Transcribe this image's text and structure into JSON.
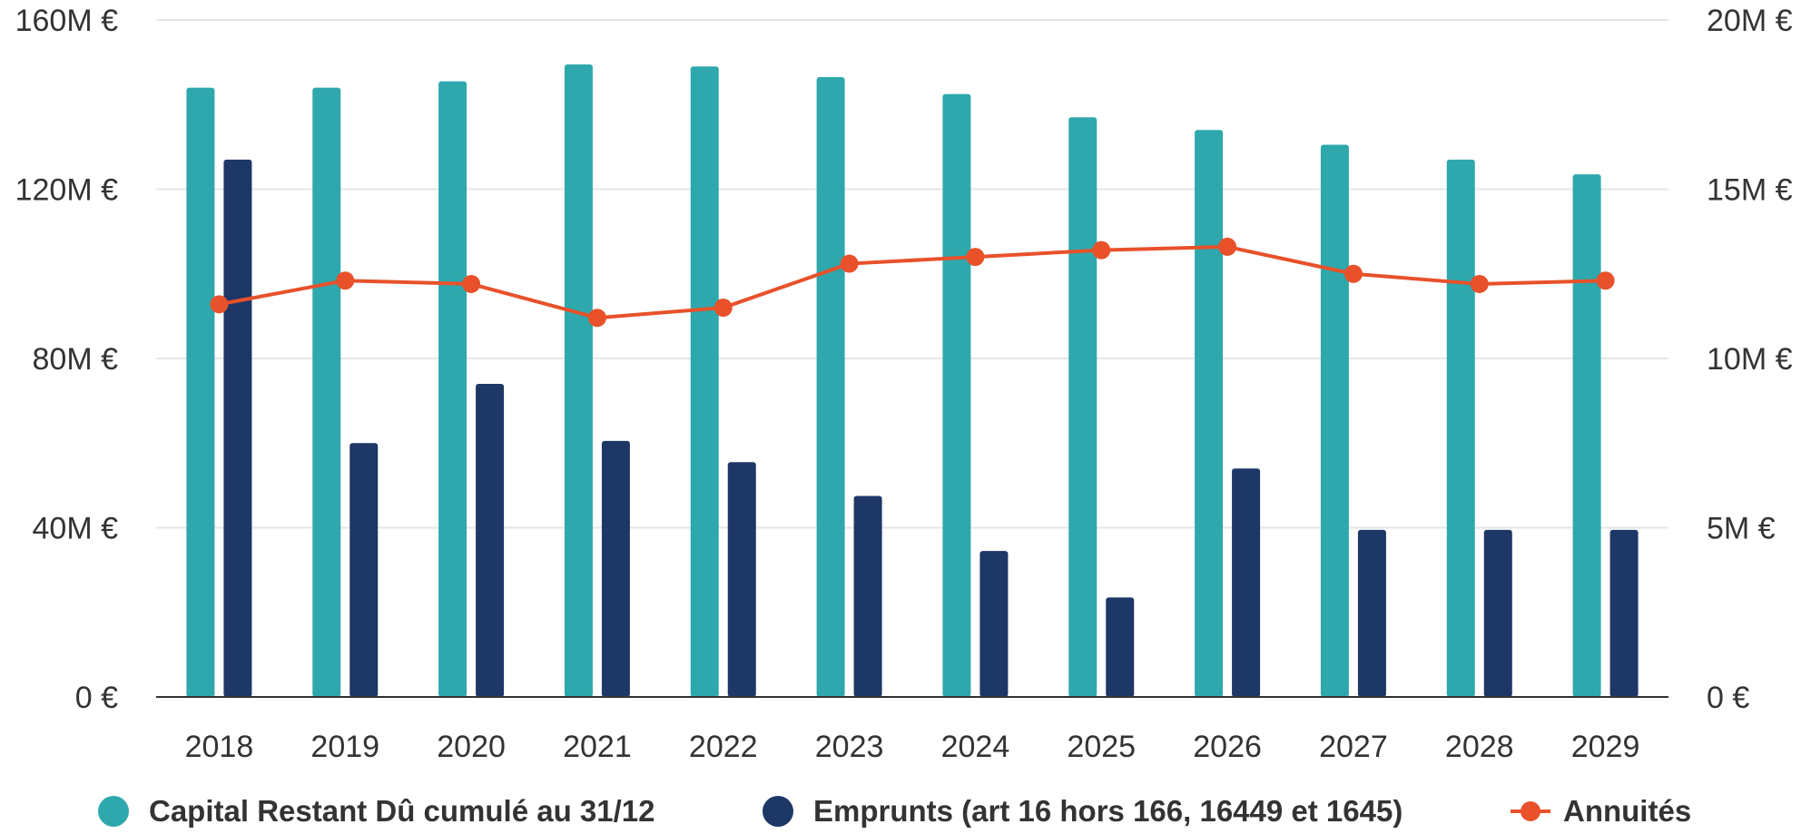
{
  "chart_data": {
    "type": "bar",
    "categories": [
      "2018",
      "2019",
      "2020",
      "2021",
      "2022",
      "2023",
      "2024",
      "2025",
      "2026",
      "2027",
      "2028",
      "2029"
    ],
    "series": [
      {
        "name": "Capital Restant Dû cumulé au 31/12",
        "type": "bar",
        "axis": "left",
        "color": "#2ea8ad",
        "values": [
          144,
          144,
          145.5,
          149.5,
          149,
          146.5,
          142.5,
          137,
          134,
          130.5,
          127,
          123.5
        ]
      },
      {
        "name": "Emprunts (art 16 hors 166, 16449 et 1645)",
        "type": "bar",
        "axis": "left",
        "color": "#1d3766",
        "values": [
          127,
          60,
          74,
          60.5,
          55.5,
          47.5,
          34.5,
          23.5,
          54,
          39.5,
          39.5,
          39.5
        ]
      },
      {
        "name": "Annuités",
        "type": "line",
        "axis": "right",
        "color": "#e8512a",
        "values": [
          11.6,
          12.3,
          12.2,
          11.2,
          11.5,
          12.8,
          13.0,
          13.2,
          13.3,
          12.5,
          12.2,
          12.3
        ]
      }
    ],
    "y_left": {
      "ticks": [
        0,
        40,
        80,
        120,
        160
      ],
      "tick_labels": [
        "0 €",
        "40M €",
        "80M €",
        "120M €",
        "160M €"
      ],
      "ylim": [
        0,
        160
      ]
    },
    "y_right": {
      "ticks": [
        0,
        5,
        10,
        15,
        20
      ],
      "tick_labels": [
        "0 €",
        "5M €",
        "10M €",
        "15M €",
        "20M €"
      ],
      "ylim": [
        0,
        20
      ]
    },
    "title": "",
    "xlabel": "",
    "grid": true,
    "legend_position": "bottom"
  }
}
